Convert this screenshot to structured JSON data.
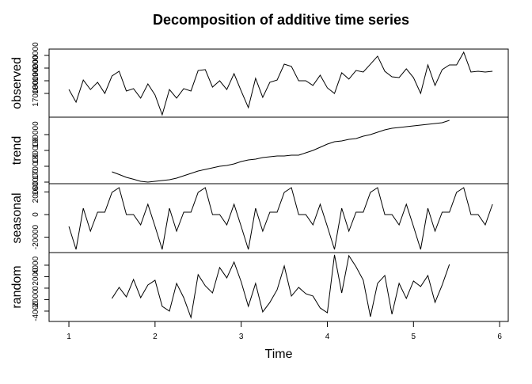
{
  "chart_data": {
    "type": "line",
    "title": "Decomposition of additive time series",
    "xlabel": "Time",
    "color": "#000000",
    "xlim": [
      0.77,
      6.1
    ],
    "xticks": [
      1,
      2,
      3,
      4,
      5,
      6
    ],
    "x": [
      1,
      1.083,
      1.167,
      1.25,
      1.333,
      1.417,
      1.5,
      1.583,
      1.667,
      1.75,
      1.833,
      1.917,
      2,
      2.083,
      2.167,
      2.25,
      2.333,
      2.417,
      2.5,
      2.583,
      2.667,
      2.75,
      2.833,
      2.917,
      3,
      3.083,
      3.167,
      3.25,
      3.333,
      3.417,
      3.5,
      3.583,
      3.667,
      3.75,
      3.833,
      3.917,
      4,
      4.083,
      4.167,
      4.25,
      4.333,
      4.417,
      4.5,
      4.583,
      4.667,
      4.75,
      4.833,
      4.917,
      5,
      5.083,
      5.167,
      5.25,
      5.333,
      5.417,
      5.5,
      5.583,
      5.667,
      5.75,
      5.833,
      5.917
    ],
    "panels": [
      {
        "ylabel": "observed",
        "ylim": [
          151250,
          205000
        ],
        "yticks": [
          170000,
          180000,
          190000,
          200000
        ],
        "values": [
          173100,
          163100,
          180600,
          173100,
          178800,
          170000,
          183800,
          187500,
          171900,
          173800,
          166300,
          177500,
          168800,
          153100,
          173100,
          166300,
          173800,
          171900,
          188100,
          188800,
          175000,
          180000,
          173100,
          185600,
          171900,
          158800,
          181900,
          166900,
          178800,
          180600,
          193100,
          191300,
          180000,
          180000,
          176300,
          184400,
          174400,
          170000,
          186300,
          181300,
          188100,
          186900,
          193100,
          199400,
          187500,
          183100,
          182500,
          189400,
          182500,
          170000,
          192500,
          176300,
          188800,
          192500,
          192500,
          202500,
          186900,
          187500,
          186900,
          187500
        ]
      },
      {
        "ylabel": "trend",
        "ylim": [
          159000,
          201000
        ],
        "yticks": [
          160000,
          170000,
          180000,
          190000
        ],
        "values": [
          null,
          null,
          null,
          null,
          null,
          null,
          166500,
          164800,
          163000,
          161800,
          160500,
          160000,
          160500,
          161000,
          161500,
          162500,
          164000,
          165500,
          167000,
          168000,
          169000,
          170000,
          170500,
          171500,
          173000,
          174000,
          174500,
          175500,
          176000,
          176500,
          176500,
          177000,
          177000,
          178500,
          180000,
          182000,
          184000,
          185500,
          186000,
          187000,
          187500,
          189000,
          190000,
          191500,
          193000,
          194000,
          194500,
          195000,
          195500,
          196000,
          196500,
          197000,
          197500,
          199000,
          null,
          null,
          null,
          null,
          null,
          null
        ]
      },
      {
        "ylabel": "seasonal",
        "ylim": [
          -33600,
          27300
        ],
        "yticks": [
          -20000,
          0,
          20000
        ],
        "values": [
          -10500,
          -30800,
          5600,
          -14700,
          2100,
          2100,
          19600,
          23800,
          0,
          0,
          -9100,
          9100,
          -10500,
          -30800,
          5600,
          -14700,
          2100,
          2100,
          19600,
          23800,
          0,
          0,
          -9100,
          9100,
          -10500,
          -30800,
          5600,
          -14700,
          2100,
          2100,
          19600,
          23800,
          0,
          0,
          -9100,
          9100,
          -10500,
          -30800,
          5600,
          -14700,
          2100,
          2100,
          19600,
          23800,
          0,
          0,
          -9100,
          9100,
          -10500,
          -30800,
          5600,
          -14700,
          2100,
          2100,
          19600,
          23800,
          0,
          0,
          -9100,
          9100
        ]
      },
      {
        "ylabel": "random",
        "ylim": [
          -5800,
          6200
        ],
        "yticks": [
          -4000,
          -2000,
          0,
          2000,
          4000
        ],
        "values": [
          null,
          null,
          null,
          null,
          null,
          null,
          -1790,
          140,
          -1520,
          1520,
          -1660,
          550,
          1380,
          -3170,
          -4000,
          830,
          -1660,
          -5110,
          2350,
          410,
          -830,
          3590,
          1790,
          4550,
          1100,
          -3170,
          830,
          -4140,
          -2480,
          -280,
          3860,
          -1380,
          140,
          -970,
          -1380,
          -3450,
          -4280,
          5800,
          -830,
          5660,
          3730,
          1380,
          -4970,
          830,
          2210,
          -4550,
          830,
          -1790,
          1240,
          280,
          2210,
          -2480,
          550,
          4140,
          null,
          null,
          null,
          null,
          null,
          null
        ]
      }
    ]
  }
}
